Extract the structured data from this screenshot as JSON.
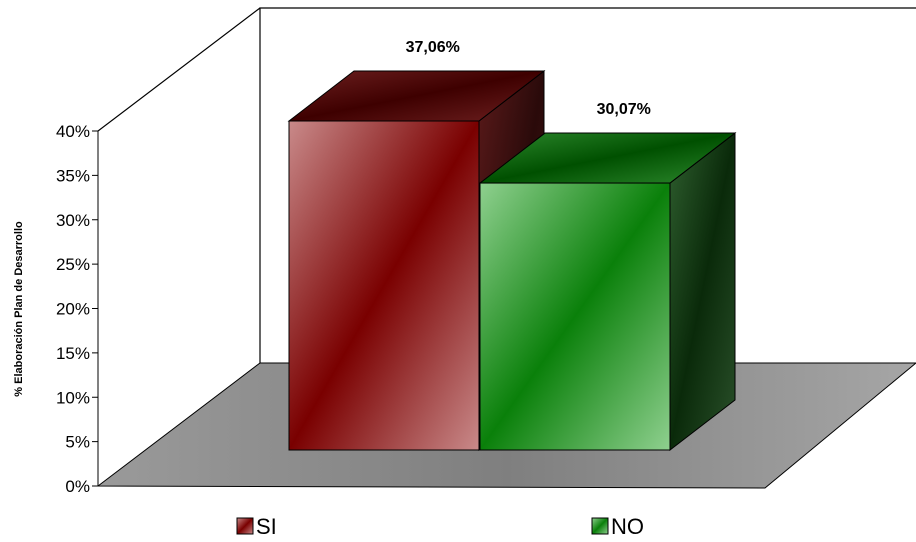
{
  "chart_data": {
    "type": "bar",
    "style": "3d-clustered",
    "ylabel": "% Elaboración Plan de Desarrollo",
    "ylim": [
      0,
      40
    ],
    "yticks": [
      "0%",
      "5%",
      "10%",
      "15%",
      "20%",
      "25%",
      "30%",
      "35%",
      "40%"
    ],
    "series": [
      {
        "name": "SI",
        "values": [
          37.06
        ],
        "label": "37,06%",
        "color": "#8b0000"
      },
      {
        "name": "NO",
        "values": [
          30.07
        ],
        "label": "30,07%",
        "color": "#008000"
      }
    ],
    "legend": {
      "position": "bottom",
      "items": [
        "SI",
        "NO"
      ]
    },
    "grid": false,
    "floor_color": "#8c8c8c"
  }
}
